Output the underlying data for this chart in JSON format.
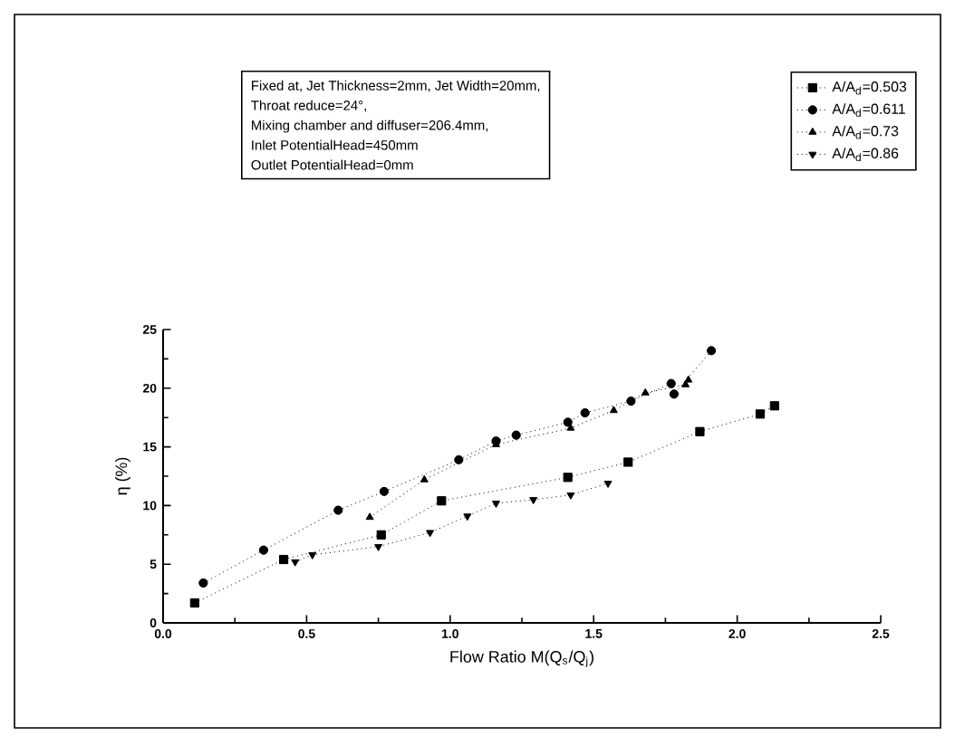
{
  "chart_data": {
    "type": "line",
    "xlabel": "Flow Ratio M(Q$_{s}$/Q$_{j}$)",
    "ylabel": "η (%)",
    "annotations": [
      "Fixed at, Jet Thickness=2mm, Jet Width=20mm,",
      "Throat reduce=24°,",
      "Mixing chamber and diffuser=206.4mm,",
      "Inlet PotentialHead=450mm",
      "Outlet PotentialHead=0mm"
    ],
    "xlim": [
      0,
      2.5
    ],
    "ylim": [
      0,
      25
    ],
    "xticks": [
      {
        "value": 0,
        "label": "0.0"
      },
      {
        "value": 0.5,
        "label": "0.5"
      },
      {
        "value": 1,
        "label": "1.0"
      },
      {
        "value": 1.5,
        "label": "1.5"
      },
      {
        "value": 2,
        "label": "2.0"
      },
      {
        "value": 2.5,
        "label": "2.5"
      }
    ],
    "yticks": [
      0,
      5,
      10,
      15,
      20,
      25
    ],
    "legend": "top right",
    "line_style": "dotted",
    "series": [
      {
        "name": "A/A$_{d}$=0.503",
        "color": "#000000",
        "marker": "square",
        "x": [
          0.11,
          0.42,
          0.76,
          0.97,
          1.41,
          1.62,
          1.87,
          2.08,
          2.13
        ],
        "values": [
          1.7,
          5.4,
          7.5,
          10.4,
          12.4,
          13.7,
          16.3,
          17.8,
          18.5
        ]
      },
      {
        "name": "A/A$_{d}$=0.611",
        "color": "#000000",
        "marker": "circle",
        "x": [
          0.14,
          0.35,
          0.61,
          0.77,
          1.03,
          1.16,
          1.23,
          1.41,
          1.47,
          1.63,
          1.77,
          1.78,
          1.91
        ],
        "values": [
          3.4,
          6.2,
          9.6,
          11.2,
          13.9,
          15.5,
          16.0,
          17.1,
          17.9,
          18.9,
          20.4,
          19.5,
          23.2
        ]
      },
      {
        "name": "A/A$_{d}$=0.73",
        "color": "#000000",
        "marker": "triangle",
        "x": [
          0.72,
          0.91,
          1.16,
          1.42,
          1.57,
          1.68,
          1.82,
          1.83
        ],
        "values": [
          9.0,
          12.2,
          15.2,
          16.6,
          18.1,
          19.6,
          20.3,
          20.7
        ]
      },
      {
        "name": "A/A$_{d}$=0.86",
        "color": "#000000",
        "marker": "triangle_down",
        "x": [
          0.46,
          0.52,
          0.75,
          0.93,
          1.06,
          1.16,
          1.29,
          1.42,
          1.55
        ],
        "values": [
          5.2,
          5.8,
          6.5,
          7.7,
          9.1,
          10.2,
          10.5,
          10.9,
          11.9
        ]
      }
    ]
  }
}
